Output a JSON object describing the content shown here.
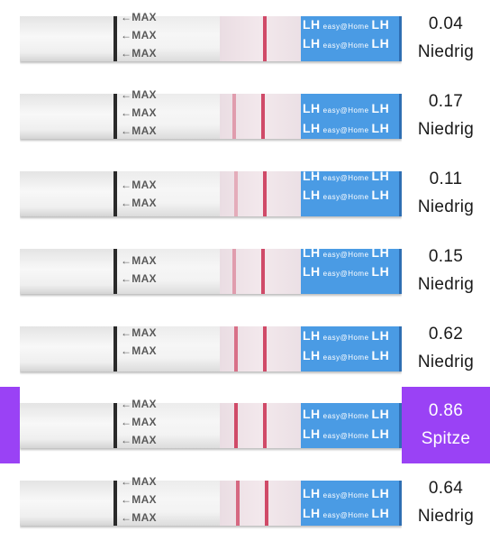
{
  "strip_marking": "←MAX",
  "brand": {
    "lh": "LH",
    "name": "easy@Home"
  },
  "colors": {
    "selection": "#9a42f5",
    "brand_blue": "#4a9be4",
    "test_line": "#d04a68"
  },
  "results": [
    {
      "value": "0.04",
      "level": "Niedrig",
      "selected": false
    },
    {
      "value": "0.17",
      "level": "Niedrig",
      "selected": false
    },
    {
      "value": "0.11",
      "level": "Niedrig",
      "selected": false
    },
    {
      "value": "0.15",
      "level": "Niedrig",
      "selected": false
    },
    {
      "value": "0.62",
      "level": "Niedrig",
      "selected": false
    },
    {
      "value": "0.86",
      "level": "Spitze",
      "selected": true
    },
    {
      "value": "0.64",
      "level": "Niedrig",
      "selected": false
    }
  ]
}
